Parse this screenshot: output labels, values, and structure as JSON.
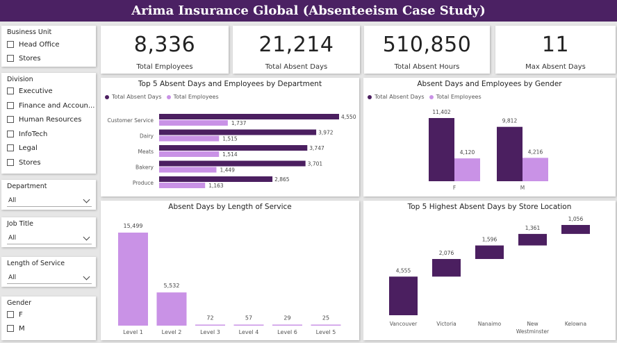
{
  "title": "Arima Insurance Global (Absenteeism Case Study)",
  "colors": {
    "dark": "#4b1f60",
    "light": "#c992e6",
    "header": "#4b2163"
  },
  "slicers": {
    "business_unit": {
      "title": "Business Unit",
      "options": [
        "Head Office",
        "Stores"
      ]
    },
    "division": {
      "title": "Division",
      "options": [
        "Executive",
        "Finance and Accoun...",
        "Human Resources",
        "InfoTech",
        "Legal",
        "Stores"
      ]
    },
    "department": {
      "title": "Department",
      "value": "All"
    },
    "job_title": {
      "title": "Job Title",
      "value": "All"
    },
    "length_of_service": {
      "title": "Length of Service",
      "value": "All"
    },
    "gender": {
      "title": "Gender",
      "options": [
        "F",
        "M"
      ]
    }
  },
  "kpis": [
    {
      "value": "8,336",
      "label": "Total Employees"
    },
    {
      "value": "21,214",
      "label": "Total Absent Days"
    },
    {
      "value": "510,850",
      "label": "Total Absent Hours"
    },
    {
      "value": "11",
      "label": "Max Absent Days"
    }
  ],
  "legend": {
    "series1": "Total Absent Days",
    "series2": "Total Employees"
  },
  "chart_data": [
    {
      "type": "bar",
      "orientation": "horizontal",
      "title": "Top 5 Absent Days and Employees by Department",
      "categories": [
        "Customer Service",
        "Dairy",
        "Meats",
        "Bakery",
        "Produce"
      ],
      "series": [
        {
          "name": "Total Absent Days",
          "values": [
            4550,
            3972,
            3747,
            3701,
            2865
          ],
          "labels": [
            "4,550",
            "3,972",
            "3,747",
            "3,701",
            "2,865"
          ]
        },
        {
          "name": "Total Employees",
          "values": [
            1737,
            1515,
            1514,
            1449,
            1163
          ],
          "labels": [
            "1,737",
            "1,515",
            "1,514",
            "1,449",
            "1,163"
          ]
        }
      ],
      "legend": "top-left"
    },
    {
      "type": "bar",
      "title": "Absent Days and Employees by Gender",
      "categories": [
        "F",
        "M"
      ],
      "series": [
        {
          "name": "Total Absent Days",
          "values": [
            11402,
            9812
          ],
          "labels": [
            "11,402",
            "9,812"
          ]
        },
        {
          "name": "Total Employees",
          "values": [
            4120,
            4216
          ],
          "labels": [
            "4,120",
            "4,216"
          ]
        }
      ],
      "legend": "top-left"
    },
    {
      "type": "bar",
      "title": "Absent Days by Length of Service",
      "categories": [
        "Level 1",
        "Level 2",
        "Level 3",
        "Level 4",
        "Level 6",
        "Level 5"
      ],
      "values": [
        15499,
        5532,
        72,
        57,
        29,
        25
      ],
      "labels": [
        "15,499",
        "5,532",
        "72",
        "57",
        "29",
        "25"
      ]
    },
    {
      "type": "waterfall",
      "title": "Top 5 Highest Absent Days by Store Location",
      "categories": [
        "Vancouver",
        "Victoria",
        "Nanaimo",
        "New Westminster",
        "Kelowna"
      ],
      "values": [
        4555,
        2076,
        1596,
        1361,
        1056
      ],
      "labels": [
        "4,555",
        "2,076",
        "1,596",
        "1,361",
        "1,056"
      ]
    }
  ]
}
